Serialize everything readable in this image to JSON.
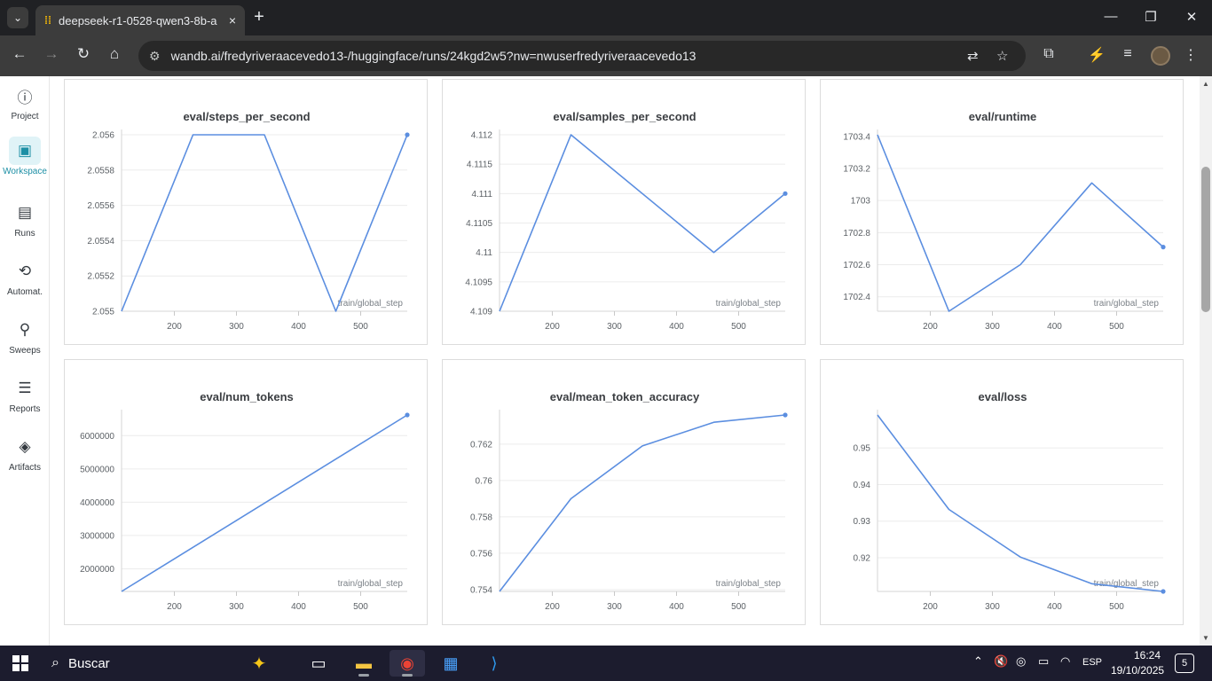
{
  "browser": {
    "tab_title": "deepseek-r1-0528-qwen3-8b-a",
    "tab_close": "×",
    "new_tab": "+",
    "url": "wandb.ai/fredyriveraacevedo13-/huggingface/runs/24kgd2w5?nw=nwuserfredyriveraacevedo13"
  },
  "sidebar": {
    "items": [
      {
        "label": "Project",
        "icon": "info-icon"
      },
      {
        "label": "Workspace",
        "icon": "workspace-icon",
        "active": true
      },
      {
        "label": "Runs",
        "icon": "table-icon"
      },
      {
        "label": "Automat.",
        "icon": "automation-icon"
      },
      {
        "label": "Sweeps",
        "icon": "broom-icon"
      },
      {
        "label": "Reports",
        "icon": "clipboard-icon"
      },
      {
        "label": "Artifacts",
        "icon": "layers-icon"
      }
    ]
  },
  "colors": {
    "line": "#5b8ee0",
    "accent": "#1d8fa5",
    "grid": "#ececec"
  },
  "chart_data": [
    {
      "type": "line",
      "title": "eval/steps_per_second",
      "xlabel": "train/global_step",
      "x": [
        115,
        230,
        345,
        460,
        575
      ],
      "y": [
        2.055,
        2.056,
        2.056,
        2.055,
        2.056
      ],
      "xlim": [
        115,
        575
      ],
      "ylim": [
        2.055,
        2.056
      ],
      "xticks": [
        200,
        300,
        400,
        500
      ],
      "yticks": [
        2.055,
        2.0552,
        2.0554,
        2.0556,
        2.0558,
        2.056
      ],
      "ytick_labels": [
        "2.055",
        "2.0552",
        "2.0554",
        "2.0556",
        "2.0558",
        "2.056"
      ],
      "endpoint_dot": true
    },
    {
      "type": "line",
      "title": "eval/samples_per_second",
      "xlabel": "train/global_step",
      "x": [
        115,
        230,
        460,
        575
      ],
      "y": [
        4.109,
        4.112,
        4.11,
        4.111
      ],
      "xlim": [
        115,
        575
      ],
      "ylim": [
        4.109,
        4.112
      ],
      "xticks": [
        200,
        300,
        400,
        500
      ],
      "yticks": [
        4.109,
        4.1095,
        4.11,
        4.1105,
        4.111,
        4.1115,
        4.112
      ],
      "ytick_labels": [
        "4.109",
        "4.1095",
        "4.11",
        "4.1105",
        "4.111",
        "4.1115",
        "4.112"
      ],
      "endpoint_dot": true
    },
    {
      "type": "line",
      "title": "eval/runtime",
      "xlabel": "train/global_step",
      "x": [
        115,
        230,
        345,
        460,
        575
      ],
      "y": [
        1703.41,
        1702.31,
        1702.6,
        1703.11,
        1702.71
      ],
      "xlim": [
        115,
        575
      ],
      "ylim": [
        1702.31,
        1703.41
      ],
      "xticks": [
        200,
        300,
        400,
        500
      ],
      "yticks": [
        1702.4,
        1702.6,
        1702.8,
        1703,
        1703.2,
        1703.4
      ],
      "ytick_labels": [
        "1702.4",
        "1702.6",
        "1702.8",
        "1703",
        "1703.2",
        "1703.4"
      ],
      "endpoint_dot": true
    },
    {
      "type": "line",
      "title": "eval/num_tokens",
      "xlabel": "train/global_step",
      "x": [
        115,
        575
      ],
      "y": [
        1320000,
        6620000
      ],
      "xlim": [
        115,
        575
      ],
      "ylim": [
        1320000,
        6620000
      ],
      "xticks": [
        200,
        300,
        400,
        500
      ],
      "yticks": [
        2000000,
        3000000,
        4000000,
        5000000,
        6000000
      ],
      "ytick_labels": [
        "2000000",
        "3000000",
        "4000000",
        "5000000",
        "6000000"
      ],
      "endpoint_dot": true
    },
    {
      "type": "line",
      "title": "eval/mean_token_accuracy",
      "xlabel": "train/global_step",
      "x": [
        115,
        230,
        345,
        460,
        575
      ],
      "y": [
        0.7539,
        0.759,
        0.7619,
        0.7632,
        0.7636
      ],
      "xlim": [
        115,
        575
      ],
      "ylim": [
        0.7539,
        0.7636
      ],
      "xticks": [
        200,
        300,
        400,
        500
      ],
      "yticks": [
        0.754,
        0.756,
        0.758,
        0.76,
        0.762
      ],
      "ytick_labels": [
        "0.754",
        "0.756",
        "0.758",
        "0.76",
        "0.762"
      ],
      "endpoint_dot": true
    },
    {
      "type": "line",
      "title": "eval/loss",
      "xlabel": "train/global_step",
      "x": [
        115,
        230,
        345,
        460,
        575
      ],
      "y": [
        0.959,
        0.9332,
        0.9202,
        0.9129,
        0.9108
      ],
      "xlim": [
        115,
        575
      ],
      "ylim": [
        0.9108,
        0.959
      ],
      "xticks": [
        200,
        300,
        400,
        500
      ],
      "yticks": [
        0.92,
        0.93,
        0.94,
        0.95
      ],
      "ytick_labels": [
        "0.92",
        "0.93",
        "0.94",
        "0.95"
      ],
      "endpoint_dot": true
    }
  ],
  "taskbar": {
    "search_label": "Buscar",
    "language": "ESP",
    "time": "16:24",
    "date": "19/10/2025",
    "notification_count": "5"
  }
}
